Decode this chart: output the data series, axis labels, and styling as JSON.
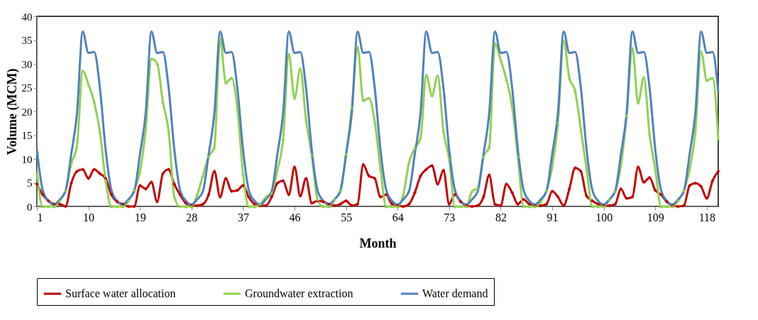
{
  "chart_data": {
    "type": "line",
    "xlabel": "Month",
    "ylabel": "Volume (MCM)",
    "x": [
      1,
      2,
      3,
      4,
      5,
      6,
      7,
      8,
      9,
      10,
      11,
      12,
      13,
      14,
      15,
      16,
      17,
      18,
      19,
      20,
      21,
      22,
      23,
      24,
      25,
      26,
      27,
      28,
      29,
      30,
      31,
      32,
      33,
      34,
      35,
      36,
      37,
      38,
      39,
      40,
      41,
      42,
      43,
      44,
      45,
      46,
      47,
      48,
      49,
      50,
      51,
      52,
      53,
      54,
      55,
      56,
      57,
      58,
      59,
      60,
      61,
      62,
      63,
      64,
      65,
      66,
      67,
      68,
      69,
      70,
      71,
      72,
      73,
      74,
      75,
      76,
      77,
      78,
      79,
      80,
      81,
      82,
      83,
      84,
      85,
      86,
      87,
      88,
      89,
      90,
      91,
      92,
      93,
      94,
      95,
      96,
      97,
      98,
      99,
      100,
      101,
      102,
      103,
      104,
      105,
      106,
      107,
      108,
      109,
      110,
      111,
      112,
      113,
      114,
      115,
      116,
      117,
      118,
      119,
      120
    ],
    "xlim": [
      1,
      120
    ],
    "xticks": [
      1,
      10,
      19,
      28,
      37,
      46,
      55,
      64,
      73,
      82,
      91,
      100,
      109,
      118
    ],
    "ylim": [
      0,
      40
    ],
    "yticks": [
      0,
      5,
      10,
      15,
      20,
      25,
      30,
      35,
      40
    ],
    "grid": false,
    "legend": "bottom",
    "series": [
      {
        "name": "Surface water allocation",
        "color": "#c00000",
        "marker": "diamond",
        "values": [
          4.7,
          2.5,
          1.2,
          0.5,
          0.5,
          0,
          4.9,
          7.4,
          7.8,
          5.9,
          7.8,
          6.9,
          5.9,
          2.5,
          1,
          0.5,
          0,
          0,
          4.4,
          3.7,
          5.1,
          1,
          6.9,
          7.8,
          4.7,
          2.5,
          0.7,
          0.2,
          0.2,
          0.5,
          2.5,
          7.4,
          2,
          5.9,
          3.2,
          3.4,
          4.4,
          2,
          0.5,
          0.2,
          0.2,
          2,
          4.9,
          5.4,
          2.5,
          8.3,
          2.2,
          5.9,
          0.7,
          1.2,
          1,
          0.5,
          0.2,
          0.5,
          1.2,
          0.2,
          0.5,
          8.8,
          6.4,
          5.9,
          2,
          2.5,
          0.5,
          0.2,
          0,
          0.5,
          2.9,
          6.4,
          7.8,
          8.6,
          4.7,
          7.6,
          0.5,
          2.5,
          1,
          0.2,
          0,
          0.2,
          2,
          6.6,
          0.5,
          0.2,
          4.7,
          2.9,
          0.5,
          1.5,
          0.5,
          0.2,
          0.2,
          0.5,
          3.2,
          2,
          0.2,
          3.7,
          8.1,
          7.4,
          2.2,
          1.2,
          0.5,
          0.2,
          0.2,
          0.5,
          3.7,
          1.7,
          2,
          8.3,
          5.1,
          6.1,
          3.4,
          2.5,
          1,
          0.2,
          0,
          0.2,
          4.4,
          4.9,
          4.2,
          1.7,
          5.4,
          7.4
        ]
      },
      {
        "name": "Groundwater extraction",
        "color": "#92d050",
        "marker": "triangle",
        "values": [
          7,
          0,
          0,
          0,
          1.2,
          3.4,
          9,
          12.8,
          28.5,
          25.7,
          22,
          15.7,
          5.5,
          0,
          0,
          0,
          1.2,
          3.5,
          7.3,
          16.2,
          31.1,
          30.1,
          22,
          15.9,
          2,
          0,
          0,
          0,
          2.5,
          6.5,
          10.5,
          12.5,
          35.3,
          26,
          27,
          20.8,
          6.9,
          0,
          0,
          0.5,
          2,
          2.9,
          7.6,
          14.2,
          32.1,
          22.8,
          29,
          18.2,
          10.8,
          1.5,
          0,
          0,
          1.5,
          3.4,
          11,
          20.8,
          33.6,
          22.3,
          22.8,
          17.9,
          8,
          0,
          0,
          0,
          2.5,
          9.3,
          12.2,
          14.4,
          27.7,
          23.3,
          27.5,
          15.9,
          10,
          0,
          0,
          0,
          3.2,
          3.9,
          10.5,
          12.5,
          34.3,
          30.8,
          26.7,
          21,
          10.5,
          0,
          0,
          0,
          1,
          3.4,
          8.3,
          17.6,
          34.8,
          27,
          24.3,
          16.2,
          7.8,
          0,
          0,
          0,
          1.5,
          3.2,
          8.6,
          19.1,
          33.3,
          21.8,
          27.2,
          15.2,
          7.8,
          0,
          0,
          0,
          1.2,
          3.4,
          7.8,
          15.7,
          32.6,
          26.5,
          27,
          14.2
        ]
      },
      {
        "name": "Water demand",
        "color": "#4f81bd",
        "marker": "none",
        "values": [
          12,
          3.5,
          1.2,
          0.4,
          1.5,
          3.2,
          11,
          19.6,
          36.8,
          32.3,
          32.5,
          25,
          12,
          3.5,
          1.2,
          0.4,
          1.5,
          3.2,
          11,
          19.6,
          36.8,
          32.3,
          32.5,
          25,
          12,
          3.5,
          1.2,
          0.4,
          1.5,
          3.2,
          11,
          19.6,
          36.8,
          32.3,
          32.5,
          25,
          12,
          3.5,
          1.2,
          0.4,
          1.5,
          3.2,
          11,
          19.6,
          36.8,
          32.3,
          32.5,
          25,
          12,
          3.5,
          1.2,
          0.4,
          1.5,
          3.2,
          11,
          19.6,
          36.8,
          32.3,
          32.5,
          25,
          12,
          3.5,
          1.2,
          0.4,
          1.5,
          3.2,
          11,
          19.6,
          36.8,
          32.3,
          32.5,
          25,
          12,
          3.5,
          1.2,
          0.4,
          1.5,
          3.2,
          11,
          19.6,
          36.8,
          32.3,
          32.5,
          25,
          12,
          3.5,
          1.2,
          0.4,
          1.5,
          3.2,
          11,
          19.6,
          36.8,
          32.3,
          32.5,
          25,
          12,
          3.5,
          1.2,
          0.4,
          1.5,
          3.2,
          11,
          19.6,
          36.8,
          32.3,
          32.5,
          25,
          12,
          3.5,
          1.2,
          0.4,
          1.5,
          3.2,
          11,
          19.6,
          36.8,
          32.3,
          32.5,
          24
        ]
      }
    ]
  }
}
